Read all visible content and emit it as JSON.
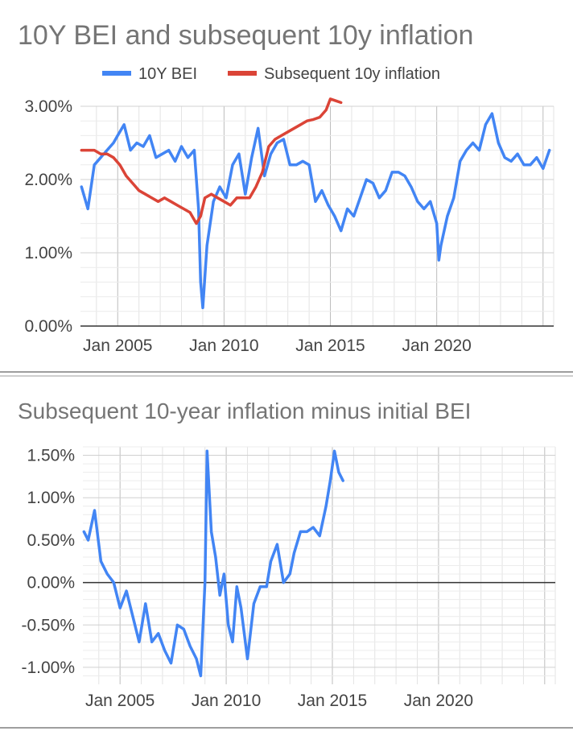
{
  "chart_data": [
    {
      "type": "line",
      "title": "10Y BEI and subsequent 10y inflation",
      "xlabel": "",
      "ylabel": "",
      "xlim": [
        2003.25,
        2025.5
      ],
      "ylim": [
        0,
        3.0
      ],
      "y_tick_values": [
        0,
        1,
        2,
        3
      ],
      "y_tick_labels": [
        "0.00%",
        "1.00%",
        "2.00%",
        "3.00%"
      ],
      "x_tick_values": [
        2005,
        2010,
        2015,
        2020
      ],
      "x_tick_labels": [
        "Jan 2005",
        "Jan 2010",
        "Jan 2015",
        "Jan 2020"
      ],
      "legend_position": "top",
      "series": [
        {
          "name": "10Y BEI",
          "color": "#4285f4",
          "x": [
            2003.3,
            2003.6,
            2003.9,
            2004.2,
            2004.5,
            2004.8,
            2005.0,
            2005.3,
            2005.6,
            2005.9,
            2006.2,
            2006.5,
            2006.8,
            2007.1,
            2007.4,
            2007.7,
            2008.0,
            2008.3,
            2008.6,
            2008.8,
            2008.9,
            2009.0,
            2009.2,
            2009.5,
            2009.8,
            2010.1,
            2010.4,
            2010.7,
            2011.0,
            2011.3,
            2011.6,
            2011.9,
            2012.2,
            2012.5,
            2012.8,
            2013.1,
            2013.4,
            2013.7,
            2014.0,
            2014.3,
            2014.6,
            2014.9,
            2015.2,
            2015.5,
            2015.8,
            2016.1,
            2016.4,
            2016.7,
            2017.0,
            2017.3,
            2017.6,
            2017.9,
            2018.2,
            2018.5,
            2018.8,
            2019.1,
            2019.4,
            2019.7,
            2020.0,
            2020.1,
            2020.2,
            2020.5,
            2020.8,
            2021.1,
            2021.4,
            2021.7,
            2022.0,
            2022.3,
            2022.6,
            2022.9,
            2023.2,
            2023.5,
            2023.8,
            2024.1,
            2024.4,
            2024.7,
            2025.0,
            2025.3
          ],
          "values": [
            1.9,
            1.6,
            2.2,
            2.3,
            2.4,
            2.5,
            2.6,
            2.75,
            2.4,
            2.5,
            2.45,
            2.6,
            2.3,
            2.35,
            2.4,
            2.25,
            2.45,
            2.3,
            2.4,
            1.6,
            0.6,
            0.25,
            1.1,
            1.7,
            1.9,
            1.75,
            2.2,
            2.35,
            1.8,
            2.3,
            2.7,
            2.05,
            2.35,
            2.5,
            2.55,
            2.2,
            2.2,
            2.25,
            2.2,
            1.7,
            1.85,
            1.65,
            1.5,
            1.3,
            1.6,
            1.5,
            1.75,
            2.0,
            1.95,
            1.75,
            1.85,
            2.1,
            2.1,
            2.05,
            1.9,
            1.7,
            1.6,
            1.7,
            1.4,
            0.9,
            1.1,
            1.5,
            1.75,
            2.25,
            2.4,
            2.5,
            2.4,
            2.75,
            2.9,
            2.5,
            2.3,
            2.25,
            2.35,
            2.2,
            2.2,
            2.3,
            2.15,
            2.4
          ]
        },
        {
          "name": "Subsequent 10y inflation",
          "color": "#db4437",
          "x": [
            2003.3,
            2003.6,
            2003.9,
            2004.2,
            2004.5,
            2004.8,
            2005.1,
            2005.4,
            2005.7,
            2006.0,
            2006.3,
            2006.6,
            2006.9,
            2007.2,
            2007.5,
            2007.8,
            2008.1,
            2008.4,
            2008.7,
            2008.9,
            2009.1,
            2009.4,
            2009.7,
            2010.0,
            2010.3,
            2010.6,
            2010.9,
            2011.2,
            2011.5,
            2011.8,
            2012.1,
            2012.4,
            2012.7,
            2013.0,
            2013.3,
            2013.6,
            2013.9,
            2014.2,
            2014.5,
            2014.8,
            2015.0,
            2015.2,
            2015.5
          ],
          "values": [
            2.4,
            2.4,
            2.4,
            2.35,
            2.35,
            2.3,
            2.2,
            2.05,
            1.95,
            1.85,
            1.8,
            1.75,
            1.7,
            1.75,
            1.7,
            1.65,
            1.6,
            1.55,
            1.4,
            1.5,
            1.75,
            1.8,
            1.75,
            1.7,
            1.65,
            1.75,
            1.75,
            1.75,
            1.9,
            2.1,
            2.45,
            2.55,
            2.6,
            2.65,
            2.7,
            2.75,
            2.8,
            2.82,
            2.85,
            2.95,
            3.1,
            3.08,
            3.05
          ]
        }
      ]
    },
    {
      "type": "line",
      "title": "Subsequent 10-year inflation minus initial BEI",
      "xlabel": "",
      "ylabel": "",
      "xlim": [
        2003.25,
        2025.5
      ],
      "ylim": [
        -1.2,
        1.6
      ],
      "y_tick_values": [
        1.5,
        1.0,
        0.5,
        0.0,
        -0.5,
        -1.0
      ],
      "y_tick_labels": [
        "1.50%",
        "1.00%",
        "0.50%",
        "0.00%",
        "-0.50%",
        "-1.00%"
      ],
      "x_tick_values": [
        2005,
        2010,
        2015,
        2020
      ],
      "x_tick_labels": [
        "Jan 2005",
        "Jan 2010",
        "Jan 2015",
        "Jan 2020"
      ],
      "series": [
        {
          "name": "Subsequent 10y inflation minus initial BEI",
          "color": "#4285f4",
          "x": [
            2003.3,
            2003.5,
            2003.8,
            2004.1,
            2004.4,
            2004.7,
            2005.0,
            2005.3,
            2005.6,
            2005.9,
            2006.2,
            2006.5,
            2006.8,
            2007.1,
            2007.4,
            2007.7,
            2008.0,
            2008.3,
            2008.6,
            2008.8,
            2009.0,
            2009.1,
            2009.3,
            2009.5,
            2009.7,
            2009.9,
            2010.1,
            2010.3,
            2010.5,
            2010.7,
            2011.0,
            2011.3,
            2011.6,
            2011.9,
            2012.1,
            2012.4,
            2012.7,
            2013.0,
            2013.2,
            2013.5,
            2013.8,
            2014.1,
            2014.4,
            2014.7,
            2014.9,
            2015.1,
            2015.3,
            2015.5
          ],
          "values": [
            0.6,
            0.5,
            0.85,
            0.25,
            0.1,
            0.0,
            -0.3,
            -0.1,
            -0.4,
            -0.7,
            -0.25,
            -0.7,
            -0.6,
            -0.8,
            -0.95,
            -0.5,
            -0.55,
            -0.75,
            -0.9,
            -1.1,
            0.0,
            1.55,
            0.6,
            0.3,
            -0.15,
            0.1,
            -0.5,
            -0.7,
            -0.05,
            -0.3,
            -0.9,
            -0.25,
            -0.05,
            -0.05,
            0.25,
            0.45,
            0.0,
            0.1,
            0.35,
            0.6,
            0.6,
            0.65,
            0.55,
            0.9,
            1.2,
            1.55,
            1.3,
            1.2
          ]
        }
      ]
    }
  ]
}
